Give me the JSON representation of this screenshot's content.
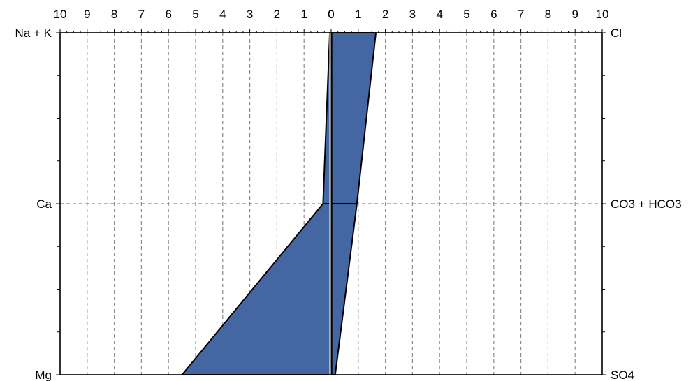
{
  "chart_data": {
    "type": "stiff",
    "x_ticks_left": [
      "10",
      "9",
      "8",
      "7",
      "6",
      "5",
      "4",
      "3",
      "2",
      "1",
      "0"
    ],
    "x_ticks_right": [
      "0",
      "1",
      "2",
      "3",
      "4",
      "5",
      "6",
      "7",
      "8",
      "9",
      "10"
    ],
    "xlim": [
      -10,
      10
    ],
    "grid": true,
    "cations": [
      "Na + K",
      "Ca",
      "Mg"
    ],
    "anions": [
      "Cl",
      "CO3 + HCO3",
      "SO4"
    ],
    "series": [
      {
        "cation_values": [
          0.05,
          0.3,
          5.5
        ],
        "anion_values": [
          1.65,
          0.95,
          0.15
        ]
      }
    ],
    "fill_color": "#4466a3",
    "line_color": "#000000"
  }
}
